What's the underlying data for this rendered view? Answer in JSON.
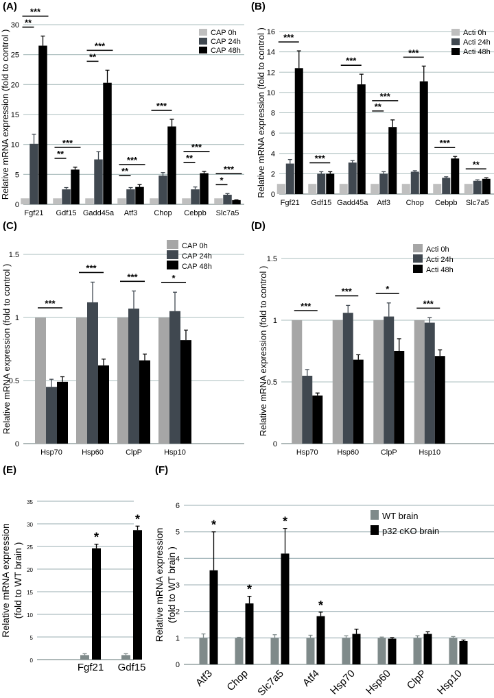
{
  "chart_data": [
    {
      "panel": "(A)",
      "type": "bar",
      "ylabel": "Relative mRNA expression (fold to control )",
      "ylim": [
        0,
        30
      ],
      "yticks": [
        0,
        5,
        10,
        15,
        20,
        25,
        30
      ],
      "grid": true,
      "legend_position": "top-right",
      "categories": [
        "Fgf21",
        "Gdf15",
        "Gadd45a",
        "Atf3",
        "Chop",
        "Cebpb",
        "Slc7a5"
      ],
      "colors": [
        "#bfbfbf",
        "#404850",
        "#000000"
      ],
      "series": [
        {
          "name": "CAP 0h",
          "values": [
            1,
            1,
            1,
            1,
            1,
            1,
            1
          ],
          "errors": [
            0,
            0,
            0,
            0,
            0,
            0,
            0
          ]
        },
        {
          "name": "CAP 24h",
          "values": [
            10.1,
            2.5,
            7.5,
            2.5,
            4.8,
            2.5,
            1.6
          ],
          "errors": [
            1.6,
            0.3,
            1.3,
            0.3,
            0.5,
            0.4,
            0.2
          ]
        },
        {
          "name": "CAP 48h",
          "values": [
            26.5,
            5.8,
            20.3,
            2.9,
            13.0,
            5.2,
            0.7
          ],
          "errors": [
            1.6,
            0.4,
            2.1,
            0.4,
            1.2,
            0.3,
            0.05
          ]
        }
      ],
      "significance": [
        {
          "cat": 0,
          "labels": [
            "**",
            "***"
          ]
        },
        {
          "cat": 1,
          "labels": [
            "**",
            "***"
          ]
        },
        {
          "cat": 2,
          "labels": [
            "**",
            "***"
          ]
        },
        {
          "cat": 3,
          "labels": [
            "**",
            "***"
          ]
        },
        {
          "cat": 4,
          "labels": [
            "***"
          ]
        },
        {
          "cat": 5,
          "labels": [
            "**",
            "***"
          ]
        },
        {
          "cat": 6,
          "labels": [
            "*",
            "***"
          ]
        }
      ]
    },
    {
      "panel": "(B)",
      "type": "bar",
      "ylabel": "Relative mRNA expression (fold to control )",
      "ylim": [
        0,
        16
      ],
      "yticks": [
        0,
        2,
        4,
        6,
        8,
        10,
        12,
        14,
        16
      ],
      "grid": true,
      "legend_position": "top-right",
      "categories": [
        "Fgf21",
        "Gdf15",
        "Gadd45a",
        "Atf3",
        "Chop",
        "Cebpb",
        "Slc7a5"
      ],
      "colors": [
        "#bfbfbf",
        "#404850",
        "#000000"
      ],
      "series": [
        {
          "name": "Acti 0h",
          "values": [
            1,
            1,
            1,
            1,
            1,
            1,
            1
          ],
          "errors": [
            0,
            0,
            0,
            0,
            0,
            0,
            0
          ]
        },
        {
          "name": "Acti 24h",
          "values": [
            3.0,
            2.0,
            3.1,
            2.0,
            2.2,
            1.6,
            1.3
          ],
          "errors": [
            0.4,
            0.2,
            0.2,
            0.2,
            0.1,
            0.1,
            0.1
          ]
        },
        {
          "name": "Acti 48h",
          "values": [
            12.4,
            2.0,
            10.8,
            6.6,
            11.1,
            3.5,
            1.5
          ],
          "errors": [
            1.7,
            0.2,
            1.0,
            0.7,
            1.5,
            0.2,
            0.1
          ]
        }
      ],
      "significance": [
        {
          "cat": 0,
          "labels": [
            "***"
          ]
        },
        {
          "cat": 1,
          "labels": [
            "***"
          ]
        },
        {
          "cat": 2,
          "labels": [
            "***"
          ]
        },
        {
          "cat": 3,
          "labels": [
            "**",
            "***"
          ]
        },
        {
          "cat": 4,
          "labels": [
            "***"
          ]
        },
        {
          "cat": 5,
          "labels": [
            "***"
          ]
        },
        {
          "cat": 6,
          "labels": [
            "**"
          ]
        }
      ]
    },
    {
      "panel": "(C)",
      "type": "bar",
      "ylabel": "Relative mRNA expression (fold to control )",
      "ylim": [
        0,
        1.5
      ],
      "yticks": [
        0,
        0.5,
        1,
        1.5
      ],
      "grid": true,
      "legend_position": "top-right",
      "categories": [
        "Hsp70",
        "Hsp60",
        "ClpP",
        "Hsp10"
      ],
      "colors": [
        "#a6a6a6",
        "#404850",
        "#000000"
      ],
      "series": [
        {
          "name": "CAP 0h",
          "values": [
            1,
            1,
            1,
            1
          ],
          "errors": [
            0,
            0,
            0,
            0
          ]
        },
        {
          "name": "CAP 24h",
          "values": [
            0.45,
            1.12,
            1.07,
            1.05
          ],
          "errors": [
            0.06,
            0.16,
            0.14,
            0.15
          ]
        },
        {
          "name": "CAP 48h",
          "values": [
            0.49,
            0.62,
            0.66,
            0.82
          ],
          "errors": [
            0.04,
            0.05,
            0.05,
            0.08
          ]
        }
      ],
      "significance": [
        {
          "cat": 0,
          "labels": [
            "***"
          ]
        },
        {
          "cat": 1,
          "labels": [
            "***"
          ]
        },
        {
          "cat": 2,
          "labels": [
            "***"
          ]
        },
        {
          "cat": 3,
          "labels": [
            "*"
          ]
        }
      ]
    },
    {
      "panel": "(D)",
      "type": "bar",
      "ylabel": "Relative mRNA expression (fold to control )",
      "ylim": [
        0,
        1.5
      ],
      "yticks": [
        0,
        0.5,
        1,
        1.5
      ],
      "grid": true,
      "legend_position": "top-right",
      "categories": [
        "Hsp70",
        "Hsp60",
        "ClpP",
        "Hsp10"
      ],
      "colors": [
        "#a6a6a6",
        "#404850",
        "#000000"
      ],
      "series": [
        {
          "name": "Acti 0h",
          "values": [
            1,
            1,
            1,
            1
          ],
          "errors": [
            0,
            0,
            0,
            0
          ]
        },
        {
          "name": "Acti 24h",
          "values": [
            0.55,
            1.06,
            1.03,
            0.98
          ],
          "errors": [
            0.05,
            0.06,
            0.11,
            0.04
          ]
        },
        {
          "name": "Acti 48h",
          "values": [
            0.39,
            0.68,
            0.75,
            0.71
          ],
          "errors": [
            0.02,
            0.04,
            0.1,
            0.05
          ]
        }
      ],
      "significance": [
        {
          "cat": 0,
          "labels": [
            "***"
          ]
        },
        {
          "cat": 1,
          "labels": [
            "***"
          ]
        },
        {
          "cat": 2,
          "labels": [
            "*"
          ]
        },
        {
          "cat": 3,
          "labels": [
            "***"
          ]
        }
      ]
    },
    {
      "panel": "(E)",
      "type": "bar",
      "ylabel": "Relative mRNA expression (fold to WT brain )",
      "ylim": [
        0,
        35
      ],
      "yticks": [
        0,
        5,
        10,
        15,
        20,
        25,
        30,
        35
      ],
      "grid": true,
      "categories": [
        "Fgf21",
        "Gdf15"
      ],
      "colors": [
        "#7f8a8a",
        "#000000"
      ],
      "series": [
        {
          "values": [
            1.0,
            1.0
          ],
          "errors": [
            0.3,
            0.3
          ]
        },
        {
          "values": [
            24.6,
            28.6
          ],
          "errors": [
            0.9,
            0.9
          ]
        }
      ],
      "significance": [
        {
          "cat": 0,
          "labels": [
            "*"
          ]
        },
        {
          "cat": 1,
          "labels": [
            "*"
          ]
        }
      ]
    },
    {
      "panel": "(F)",
      "type": "bar",
      "ylabel": "Relative mRNA expression (fold to WT brain )",
      "ylim": [
        0,
        6
      ],
      "yticks": [
        0,
        1,
        2,
        3,
        4,
        5,
        6
      ],
      "grid": true,
      "legend_position": "top-right",
      "categories": [
        "Atf3",
        "Chop",
        "Slc7a5",
        "Atf4",
        "Hsp70",
        "Hsp60",
        "ClpP",
        "Hsp10"
      ],
      "colors": [
        "#7f8a8a",
        "#000000"
      ],
      "series": [
        {
          "name": "WT brain",
          "values": [
            1.0,
            1.0,
            1.0,
            1.0,
            1.0,
            1.0,
            1.0,
            1.0
          ],
          "errors": [
            0.15,
            0.02,
            0.12,
            0.1,
            0.08,
            0.03,
            0.08,
            0.05
          ]
        },
        {
          "name": "p32 cKO brain",
          "values": [
            3.55,
            2.3,
            4.18,
            1.82,
            1.15,
            0.97,
            1.15,
            0.88
          ],
          "errors": [
            1.45,
            0.27,
            0.95,
            0.15,
            0.18,
            0.04,
            0.08,
            0.04
          ]
        }
      ],
      "significance": [
        {
          "cat": 0,
          "labels": [
            "*"
          ]
        },
        {
          "cat": 1,
          "labels": [
            "*"
          ]
        },
        {
          "cat": 2,
          "labels": [
            "*"
          ]
        },
        {
          "cat": 3,
          "labels": [
            "*"
          ]
        }
      ]
    }
  ]
}
